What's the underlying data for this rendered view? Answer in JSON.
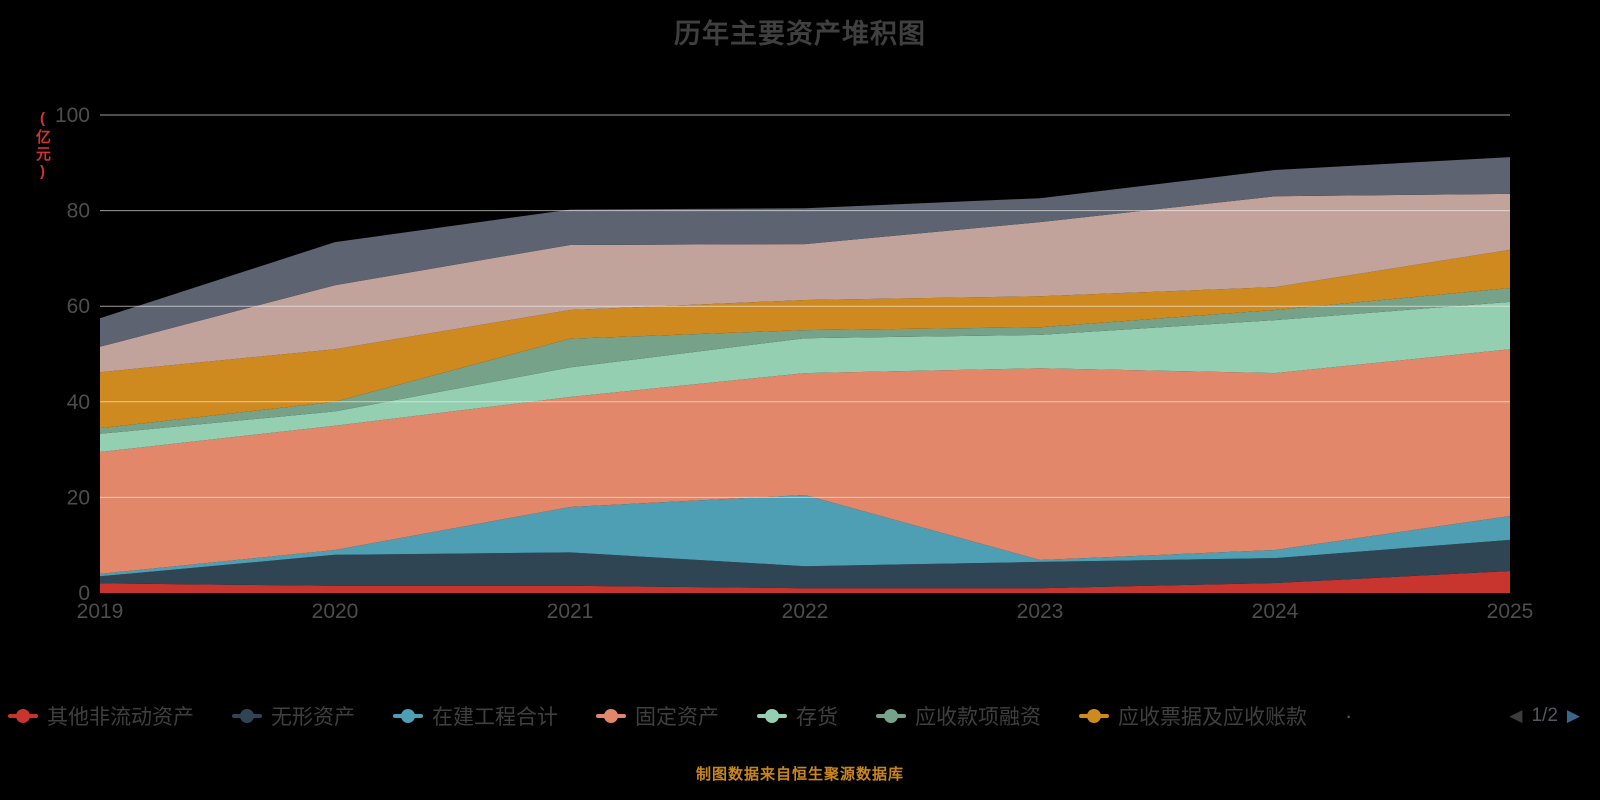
{
  "page": {
    "background_color": "#000000"
  },
  "chart_data": {
    "type": "area",
    "stacked": true,
    "title": "历年主要资产堆积图",
    "unit_label": "(亿元)",
    "x": [
      "2019",
      "2020",
      "2021",
      "2022",
      "2023",
      "2024",
      "2025"
    ],
    "ylim": [
      0,
      100
    ],
    "yticks": [
      0,
      20,
      40,
      60,
      80,
      100
    ],
    "grid_on": true,
    "legend_position": "bottom",
    "series": [
      {
        "name": "其他非流动资产",
        "color": "#c7352e",
        "in_legend": true,
        "values": [
          2.0,
          1.5,
          1.5,
          1.0,
          1.0,
          2.1,
          4.6
        ]
      },
      {
        "name": "无形资产",
        "color": "#2f4554",
        "in_legend": true,
        "values": [
          1.5,
          6.5,
          7.0,
          4.6,
          5.5,
          5.2,
          6.5
        ]
      },
      {
        "name": "在建工程合计",
        "color": "#4f9fb4",
        "in_legend": true,
        "values": [
          0.5,
          1.0,
          9.5,
          14.9,
          0.4,
          1.7,
          5.0
        ]
      },
      {
        "name": "固定资产",
        "color": "#e2876a",
        "in_legend": true,
        "values": [
          25.5,
          26.0,
          23.0,
          25.5,
          40.1,
          37.0,
          34.9
        ]
      },
      {
        "name": "存货",
        "color": "#93cfb0",
        "in_legend": true,
        "values": [
          3.8,
          3.0,
          6.2,
          7.3,
          7.0,
          11.1,
          9.9
        ]
      },
      {
        "name": "应收款项融资",
        "color": "#76a289",
        "in_legend": true,
        "values": [
          1.2,
          2.0,
          6.0,
          1.7,
          1.6,
          2.1,
          2.9
        ]
      },
      {
        "name": "应收票据及应收账款",
        "color": "#cf8a1f",
        "in_legend": true,
        "values": [
          11.7,
          11.0,
          6.0,
          6.3,
          6.5,
          4.8,
          8.0
        ]
      },
      {
        "name": "",
        "color": "#c2a39c",
        "in_legend": false,
        "values": [
          5.3,
          13.4,
          13.6,
          11.7,
          15.5,
          19.0,
          11.7
        ]
      },
      {
        "name": "",
        "color": "#5d6370",
        "in_legend": false,
        "values": [
          6.0,
          9.0,
          7.4,
          7.5,
          5.0,
          5.5,
          7.7
        ]
      }
    ],
    "legend_pager": {
      "dot": "·",
      "prev_icon": "◀",
      "page_info": "1/2",
      "next_icon": "▶"
    },
    "source_note": "制图数据来自恒生聚源数据库"
  }
}
